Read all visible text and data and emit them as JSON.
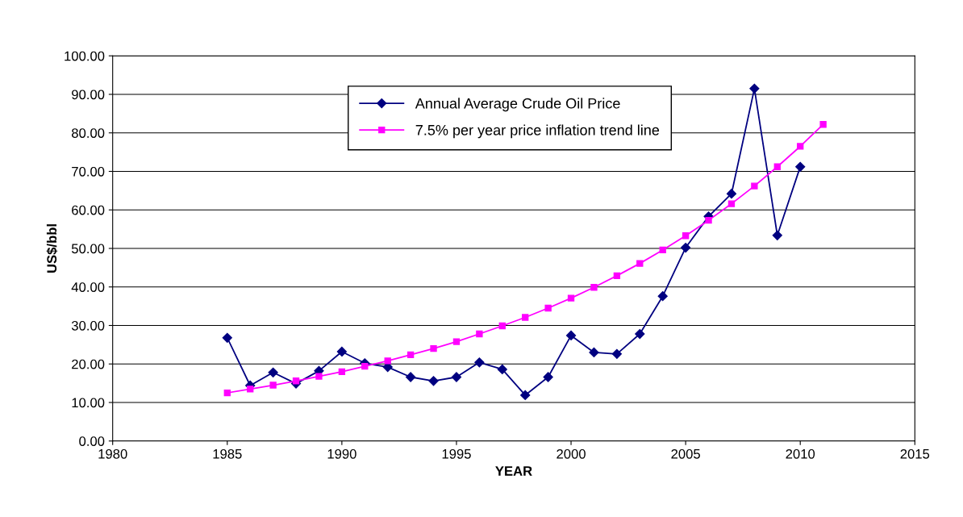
{
  "chart_data": {
    "type": "line",
    "xlabel": "YEAR",
    "ylabel": "US$/bbl",
    "x": [
      1985,
      1986,
      1987,
      1988,
      1989,
      1990,
      1991,
      1992,
      1993,
      1994,
      1995,
      1996,
      1997,
      1998,
      1999,
      2000,
      2001,
      2002,
      2003,
      2004,
      2005,
      2006,
      2007,
      2008,
      2009,
      2010
    ],
    "series": [
      {
        "name": "Annual Average Crude Oil Price",
        "color": "#000080",
        "marker": "diamond",
        "values": [
          26.8,
          14.4,
          17.8,
          14.9,
          18.2,
          23.2,
          20.2,
          19.2,
          16.6,
          15.6,
          16.6,
          20.4,
          18.6,
          11.9,
          16.6,
          27.4,
          23.0,
          22.6,
          27.8,
          37.6,
          50.2,
          58.3,
          64.2,
          91.5,
          53.4,
          71.2
        ]
      },
      {
        "name": "7.5% per year price inflation trend line",
        "color": "#ff00ff",
        "marker": "square",
        "x": [
          1985,
          1986,
          1987,
          1988,
          1989,
          1990,
          1991,
          1992,
          1993,
          1994,
          1995,
          1996,
          1997,
          1998,
          1999,
          2000,
          2001,
          2002,
          2003,
          2004,
          2005,
          2006,
          2007,
          2008,
          2009,
          2010,
          2011
        ],
        "values": [
          12.5,
          13.5,
          14.5,
          15.6,
          16.8,
          18.0,
          19.4,
          20.8,
          22.4,
          24.0,
          25.8,
          27.8,
          29.9,
          32.1,
          34.5,
          37.1,
          39.9,
          42.9,
          46.1,
          49.6,
          53.3,
          57.3,
          61.6,
          66.2,
          71.2,
          76.5,
          82.2
        ]
      }
    ],
    "xlim": [
      1980,
      2015
    ],
    "xticks": [
      1980,
      1985,
      1990,
      1995,
      2000,
      2005,
      2010,
      2015
    ],
    "ylim": [
      0,
      100
    ],
    "yticks": [
      {
        "value": 0,
        "label": "0.00"
      },
      {
        "value": 10,
        "label": "10.00"
      },
      {
        "value": 20,
        "label": "20.00"
      },
      {
        "value": 30,
        "label": "30.00"
      },
      {
        "value": 40,
        "label": "40.00"
      },
      {
        "value": 50,
        "label": "50.00"
      },
      {
        "value": 60,
        "label": "60.00"
      },
      {
        "value": 70,
        "label": "70.00"
      },
      {
        "value": 80,
        "label": "80.00"
      },
      {
        "value": 90,
        "label": "90.00"
      },
      {
        "value": 100,
        "label": "100.00"
      }
    ],
    "grid": "y",
    "legend": "top",
    "line_style": "solid"
  }
}
